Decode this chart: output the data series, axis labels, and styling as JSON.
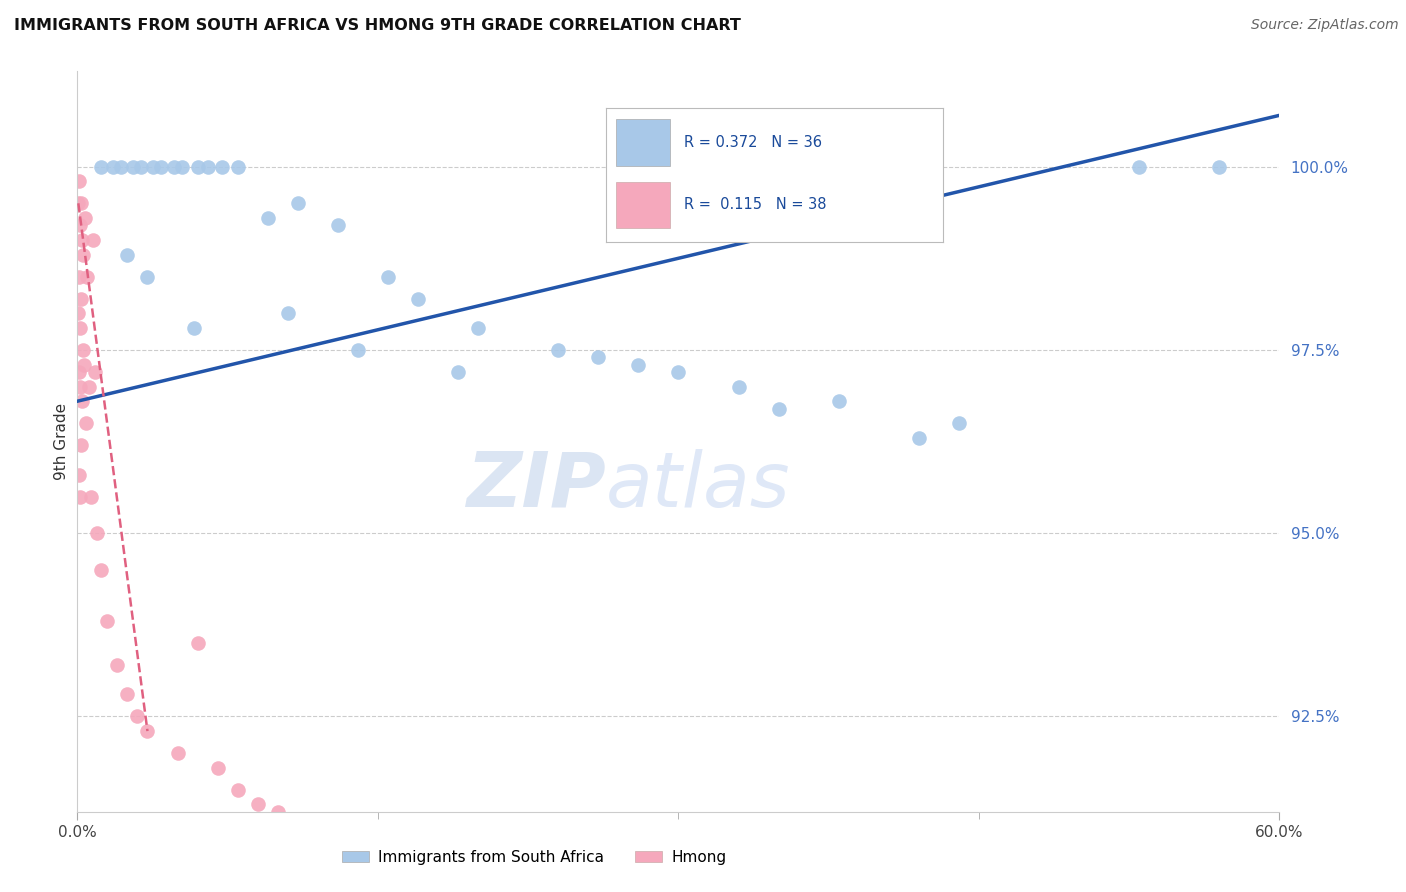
{
  "title": "IMMIGRANTS FROM SOUTH AFRICA VS HMONG 9TH GRADE CORRELATION CHART",
  "source": "Source: ZipAtlas.com",
  "ylabel": "9th Grade",
  "xlim": [
    0.0,
    60.0
  ],
  "ylim": [
    91.2,
    101.3
  ],
  "yticks": [
    92.5,
    95.0,
    97.5,
    100.0
  ],
  "ytick_labels": [
    "92.5%",
    "95.0%",
    "97.5%",
    "100.0%"
  ],
  "legend_r_blue": "R = 0.372",
  "legend_n_blue": "N = 36",
  "legend_r_pink": "R =  0.115",
  "legend_n_pink": "N = 38",
  "blue_color": "#a8c8e8",
  "blue_line_color": "#2255aa",
  "pink_color": "#f5a8bc",
  "pink_line_color": "#e06080",
  "blue_scatter_x": [
    1.2,
    1.8,
    2.2,
    2.8,
    3.2,
    3.8,
    4.2,
    4.8,
    5.2,
    6.0,
    6.5,
    7.2,
    8.0,
    9.5,
    11.0,
    13.0,
    15.5,
    17.0,
    20.0,
    24.0,
    28.0,
    33.0,
    38.0,
    44.0,
    2.5,
    3.5,
    5.8,
    10.5,
    14.0,
    19.0,
    26.0,
    30.0,
    35.0,
    42.0,
    53.0,
    57.0
  ],
  "blue_scatter_y": [
    100.0,
    100.0,
    100.0,
    100.0,
    100.0,
    100.0,
    100.0,
    100.0,
    100.0,
    100.0,
    100.0,
    100.0,
    100.0,
    99.3,
    99.5,
    99.2,
    98.5,
    98.2,
    97.8,
    97.5,
    97.3,
    97.0,
    96.8,
    96.5,
    98.8,
    98.5,
    97.8,
    98.0,
    97.5,
    97.2,
    97.4,
    97.2,
    96.7,
    96.3,
    100.0,
    100.0
  ],
  "pink_scatter_x": [
    0.05,
    0.05,
    0.08,
    0.08,
    0.1,
    0.1,
    0.12,
    0.12,
    0.15,
    0.15,
    0.18,
    0.2,
    0.2,
    0.22,
    0.25,
    0.28,
    0.3,
    0.35,
    0.4,
    0.45,
    0.5,
    0.6,
    0.7,
    0.8,
    0.9,
    1.0,
    1.2,
    1.5,
    2.0,
    2.5,
    3.0,
    3.5,
    5.0,
    6.0,
    7.0,
    8.0,
    9.0,
    10.0
  ],
  "pink_scatter_y": [
    99.5,
    98.0,
    97.2,
    95.8,
    99.8,
    98.5,
    97.0,
    95.5,
    99.2,
    97.8,
    96.2,
    99.5,
    98.2,
    96.8,
    99.0,
    97.5,
    98.8,
    97.3,
    99.3,
    96.5,
    98.5,
    97.0,
    95.5,
    99.0,
    97.2,
    95.0,
    94.5,
    93.8,
    93.2,
    92.8,
    92.5,
    92.3,
    92.0,
    93.5,
    91.8,
    91.5,
    91.3,
    91.2
  ],
  "blue_line_x": [
    0.0,
    60.0
  ],
  "blue_line_y": [
    96.8,
    100.7
  ],
  "pink_line_x": [
    0.05,
    3.5
  ],
  "pink_line_y": [
    99.5,
    92.3
  ],
  "watermark_zip": "ZIP",
  "watermark_atlas": "atlas",
  "background_color": "#ffffff"
}
